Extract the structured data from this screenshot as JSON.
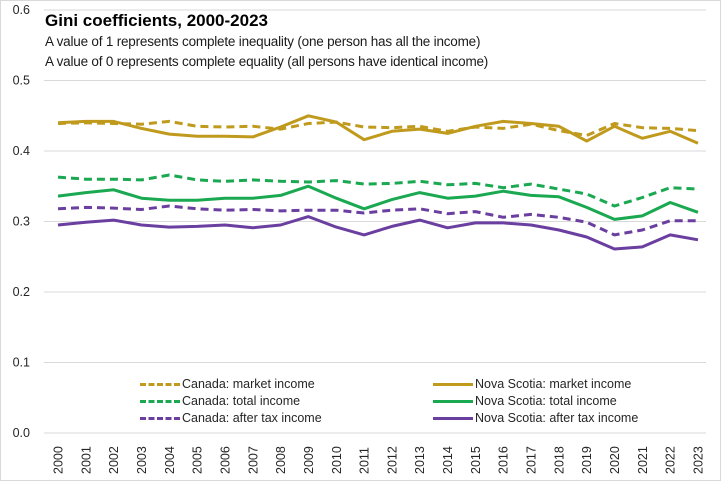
{
  "chart_data": {
    "type": "line",
    "title": "Gini coefficients, 2000-2023",
    "subtitle_lines": [
      "A value of 1 represents complete inequality (one person has all the income)",
      "A value of 0 represents complete equality (all persons have identical income)"
    ],
    "xlabel": "",
    "ylabel": "",
    "ylim": [
      0.0,
      0.6
    ],
    "y_ticks": [
      "0.0",
      "0.1",
      "0.2",
      "0.3",
      "0.4",
      "0.5",
      "0.6"
    ],
    "grid": true,
    "legend_position": "bottom-inside",
    "x": [
      "2000",
      "2001",
      "2002",
      "2003",
      "2004",
      "2005",
      "2006",
      "2007",
      "2008",
      "2009",
      "2010",
      "2011",
      "2012",
      "2013",
      "2014",
      "2015",
      "2016",
      "2017",
      "2018",
      "2019",
      "2020",
      "2021",
      "2022",
      "2023"
    ],
    "series": [
      {
        "name": "Canada: market income",
        "color": "#c09a1c",
        "dash": true,
        "values": [
          0.439,
          0.44,
          0.439,
          0.438,
          0.442,
          0.435,
          0.434,
          0.435,
          0.431,
          0.439,
          0.441,
          0.434,
          0.433,
          0.435,
          0.428,
          0.434,
          0.432,
          0.438,
          0.429,
          0.422,
          0.439,
          0.433,
          0.432,
          0.429
        ]
      },
      {
        "name": "Canada: total income",
        "color": "#1aa851",
        "dash": true,
        "values": [
          0.363,
          0.36,
          0.36,
          0.359,
          0.366,
          0.359,
          0.357,
          0.359,
          0.357,
          0.356,
          0.358,
          0.353,
          0.354,
          0.357,
          0.352,
          0.354,
          0.348,
          0.353,
          0.346,
          0.339,
          0.322,
          0.334,
          0.348,
          0.346
        ]
      },
      {
        "name": "Canada: after tax income",
        "color": "#6a3fa0",
        "dash": true,
        "values": [
          0.318,
          0.32,
          0.319,
          0.317,
          0.322,
          0.318,
          0.316,
          0.317,
          0.315,
          0.316,
          0.316,
          0.312,
          0.316,
          0.318,
          0.311,
          0.314,
          0.306,
          0.31,
          0.306,
          0.299,
          0.281,
          0.288,
          0.301,
          0.301
        ]
      },
      {
        "name": "Nova Scotia: market income",
        "color": "#c09a1c",
        "dash": false,
        "values": [
          0.44,
          0.442,
          0.442,
          0.432,
          0.424,
          0.421,
          0.421,
          0.42,
          0.434,
          0.45,
          0.441,
          0.416,
          0.428,
          0.431,
          0.425,
          0.435,
          0.442,
          0.439,
          0.435,
          0.414,
          0.435,
          0.418,
          0.428,
          0.411
        ]
      },
      {
        "name": "Nova Scotia: total income",
        "color": "#1aa851",
        "dash": false,
        "values": [
          0.336,
          0.341,
          0.345,
          0.333,
          0.33,
          0.33,
          0.333,
          0.333,
          0.337,
          0.35,
          0.333,
          0.318,
          0.331,
          0.341,
          0.333,
          0.336,
          0.343,
          0.337,
          0.335,
          0.32,
          0.303,
          0.308,
          0.327,
          0.313
        ]
      },
      {
        "name": "Nova Scotia: after tax income",
        "color": "#6a3fa0",
        "dash": false,
        "values": [
          0.295,
          0.299,
          0.302,
          0.295,
          0.292,
          0.293,
          0.295,
          0.291,
          0.295,
          0.307,
          0.292,
          0.281,
          0.293,
          0.302,
          0.291,
          0.298,
          0.298,
          0.295,
          0.288,
          0.278,
          0.261,
          0.264,
          0.281,
          0.274
        ]
      }
    ]
  }
}
